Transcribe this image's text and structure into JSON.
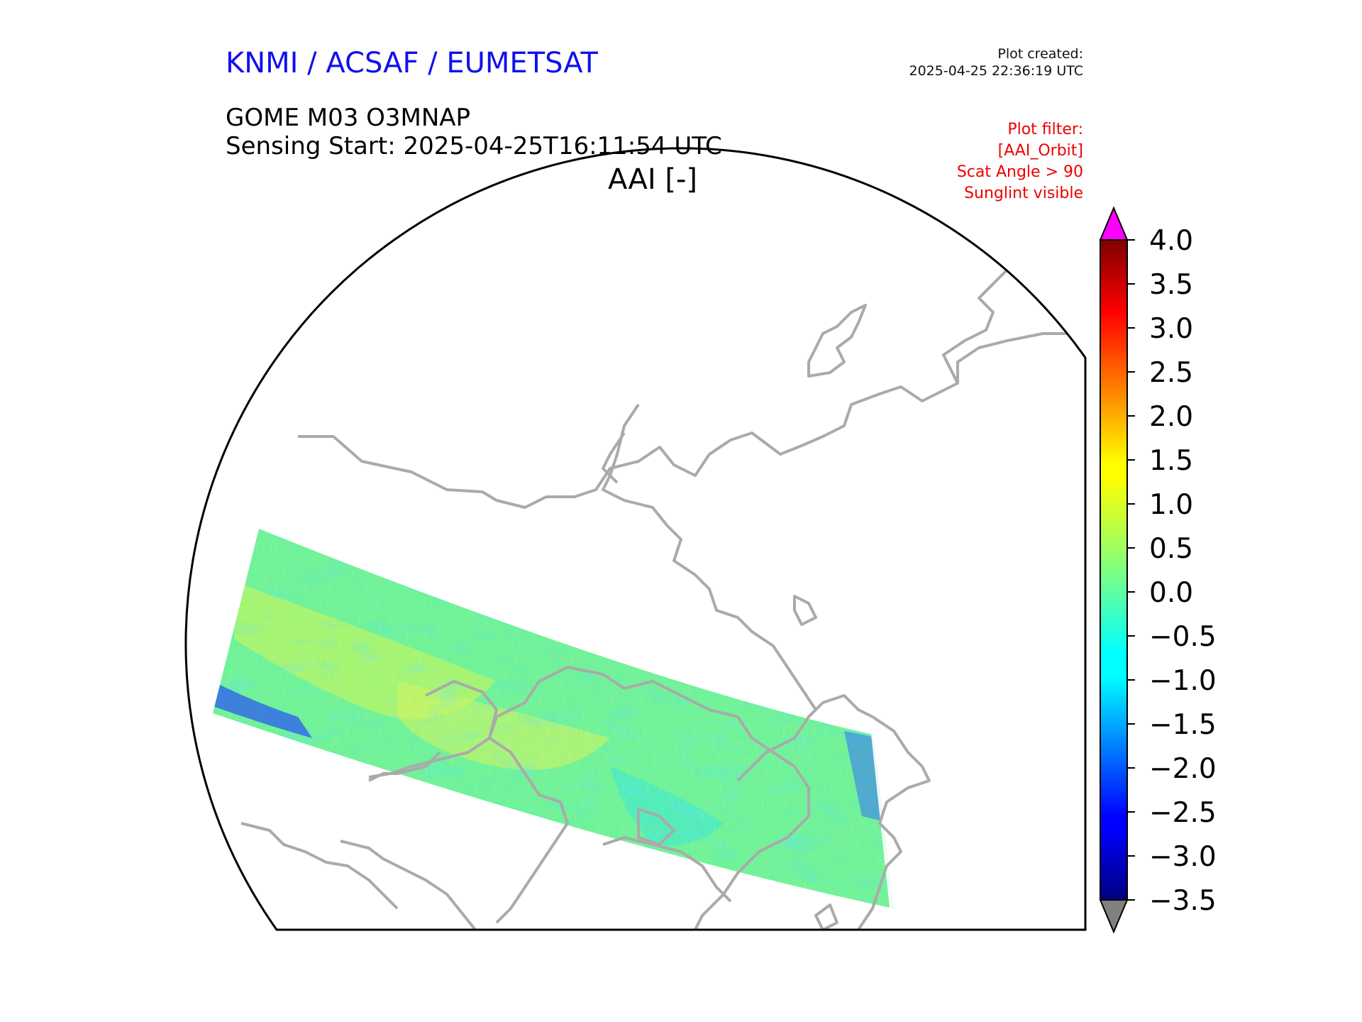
{
  "header": {
    "source": "KNMI / ACSAF / EUMETSAT",
    "plot_created_label": "Plot created:",
    "plot_created_time": "2025-04-25 22:36:19 UTC",
    "product": "GOME M03 O3MNAP",
    "sensing_start": "Sensing Start: 2025-04-25T16:11:54 UTC",
    "variable": "AAI [-]"
  },
  "plot_filter": {
    "lines": [
      "Plot filter:",
      "[AAI_Orbit]",
      "Scat Angle > 90",
      "Sunglint visible"
    ]
  },
  "colorbar": {
    "min": -3.5,
    "max": 4.0,
    "tick_labels": [
      "4.0",
      "3.5",
      "3.0",
      "2.5",
      "2.0",
      "1.5",
      "1.0",
      "0.5",
      "0.0",
      "−0.5",
      "−1.0",
      "−1.5",
      "−2.0",
      "−2.5",
      "−3.0",
      "−3.5"
    ],
    "over_color": "#ff00ff",
    "under_color": "#808080",
    "colormap": "jet"
  },
  "map": {
    "projection": "north polar stereographic",
    "coastline_color": "#aaaaaa",
    "swath_mean_aai": 0.3
  },
  "colors": {
    "source_text": "#1010ee",
    "filter_text": "#ee0000"
  }
}
